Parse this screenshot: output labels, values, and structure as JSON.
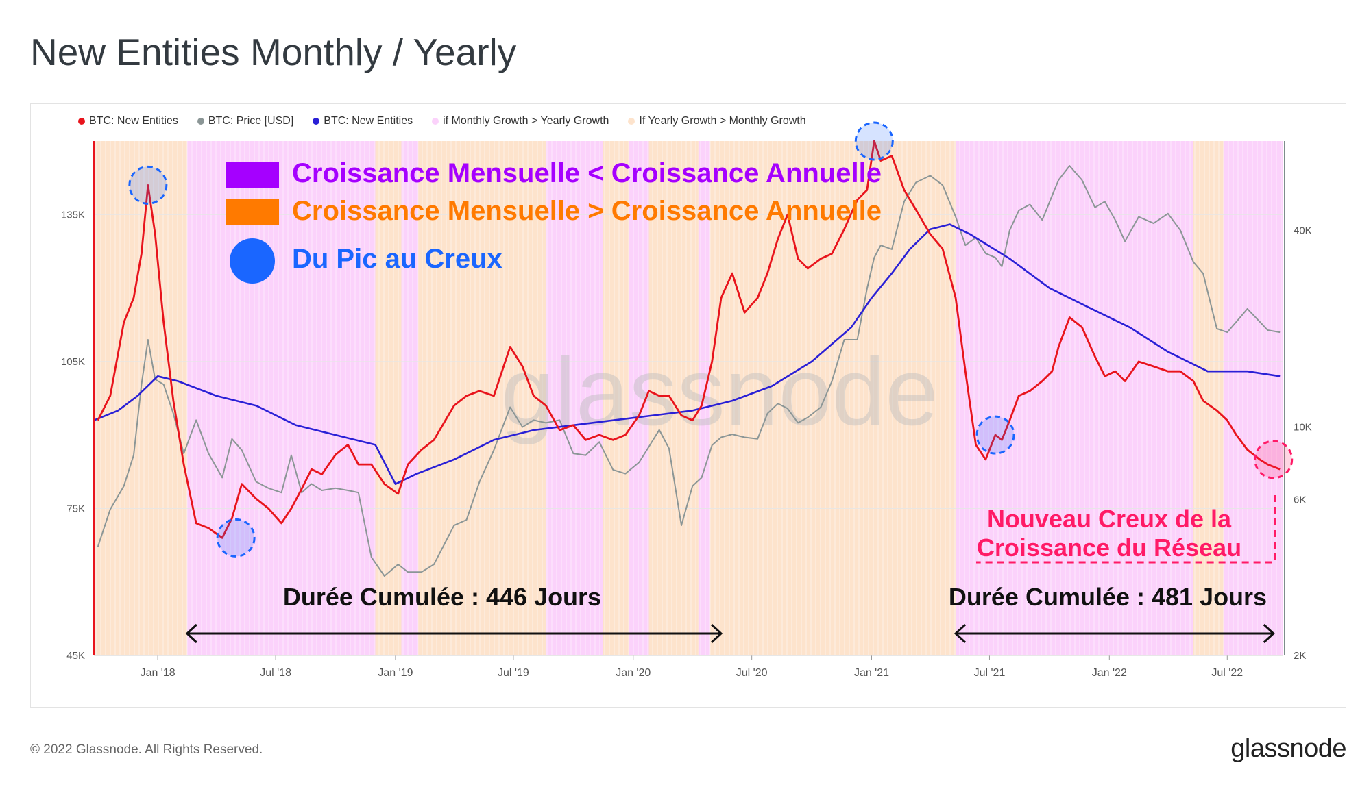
{
  "page": {
    "title": "New Entities Monthly / Yearly",
    "copyright": "© 2022 Glassnode. All Rights Reserved.",
    "logo": "glassnode",
    "watermark": "glassnode"
  },
  "legend": [
    {
      "label": "BTC: New Entities",
      "color": "#e8141c"
    },
    {
      "label": "BTC: Price [USD]",
      "color": "#8b9696"
    },
    {
      "label": "BTC: New Entities",
      "color": "#2a20d6"
    },
    {
      "label": "if Monthly Growth > Yearly Growth",
      "color": "#fbd2fb"
    },
    {
      "label": "If Yearly Growth > Monthly Growth",
      "color": "#fde3cc"
    }
  ],
  "annotations": {
    "monthly_lt_yearly": "Croissance Mensuelle < Croissance Annuelle",
    "monthly_gt_yearly": "Croissance Mensuelle > Croissance Annuelle",
    "peak_to_trough": "Du Pic au Creux",
    "new_trough_line1": "Nouveau Creux de la",
    "new_trough_line2": "Croissance du Réseau",
    "duration_1": "Durée Cumulée : 446 Jours",
    "duration_2": "Durée Cumulée : 481 Jours"
  },
  "colors": {
    "red": "#e8141c",
    "gray": "#8b9696",
    "blue": "#2a20d6",
    "pink": "#fbd2fb",
    "peach": "#fde3cc",
    "purple": "#a500ff",
    "orange": "#ff7a00",
    "marker_blue": "#1a66ff",
    "magenta": "#ff1a66"
  },
  "chart_data": {
    "type": "line",
    "title": "New Entities Monthly / Yearly",
    "x_ticks": [
      "Jan '18",
      "Jul '18",
      "Jan '19",
      "Jul '19",
      "Jan '20",
      "Jul '20",
      "Jan '21",
      "Jul '21",
      "Jan '22",
      "Jul '22"
    ],
    "x_range": [
      "2017-09-25",
      "2022-09-25"
    ],
    "y_left": {
      "ticks": [
        "45K",
        "75K",
        "105K",
        "135K"
      ],
      "range": [
        45000,
        150000
      ]
    },
    "y_right": {
      "ticks": [
        "2K",
        "6K",
        "10K",
        "40K"
      ],
      "scale": "log",
      "range": [
        2000,
        75000
      ]
    },
    "series": [
      {
        "name": "BTC: New Entities",
        "color": "#e8141c",
        "axis": "left",
        "x": [
          "2017-10-01",
          "2017-10-20",
          "2017-11-10",
          "2017-11-25",
          "2017-12-07",
          "2017-12-17",
          "2017-12-28",
          "2018-01-10",
          "2018-01-25",
          "2018-02-10",
          "2018-03-01",
          "2018-03-20",
          "2018-04-10",
          "2018-04-25",
          "2018-05-10",
          "2018-06-01",
          "2018-06-20",
          "2018-07-10",
          "2018-07-25",
          "2018-08-10",
          "2018-08-25",
          "2018-09-10",
          "2018-10-01",
          "2018-10-20",
          "2018-11-05",
          "2018-11-25",
          "2018-12-15",
          "2019-01-05",
          "2019-01-20",
          "2019-02-10",
          "2019-03-01",
          "2019-04-01",
          "2019-04-20",
          "2019-05-10",
          "2019-06-01",
          "2019-06-26",
          "2019-07-15",
          "2019-08-01",
          "2019-08-20",
          "2019-09-10",
          "2019-10-01",
          "2019-10-20",
          "2019-11-10",
          "2019-12-01",
          "2019-12-20",
          "2020-01-10",
          "2020-01-25",
          "2020-02-10",
          "2020-02-25",
          "2020-03-15",
          "2020-04-01",
          "2020-04-15",
          "2020-05-01",
          "2020-05-15",
          "2020-06-01",
          "2020-06-20",
          "2020-07-10",
          "2020-07-25",
          "2020-08-10",
          "2020-08-25",
          "2020-09-10",
          "2020-09-25",
          "2020-10-15",
          "2020-11-01",
          "2020-11-20",
          "2020-12-10",
          "2020-12-25",
          "2021-01-05",
          "2021-01-15",
          "2021-02-01",
          "2021-02-20",
          "2021-03-10",
          "2021-04-01",
          "2021-04-20",
          "2021-05-10",
          "2021-05-25",
          "2021-06-10",
          "2021-06-25",
          "2021-07-10",
          "2021-07-20",
          "2021-08-01",
          "2021-08-15",
          "2021-09-01",
          "2021-09-20",
          "2021-10-05",
          "2021-10-15",
          "2021-11-01",
          "2021-11-20",
          "2021-12-10",
          "2021-12-25",
          "2022-01-10",
          "2022-01-25",
          "2022-02-15",
          "2022-03-10",
          "2022-04-01",
          "2022-04-20",
          "2022-05-10",
          "2022-05-25",
          "2022-06-15",
          "2022-07-01",
          "2022-07-15",
          "2022-08-01",
          "2022-08-20",
          "2022-09-01",
          "2022-09-20"
        ],
        "y": [
          93000,
          98000,
          113000,
          118000,
          127000,
          141000,
          131000,
          113000,
          97000,
          84000,
          72000,
          71000,
          69000,
          73000,
          80000,
          77000,
          75000,
          72000,
          75000,
          79000,
          83000,
          82000,
          86000,
          88000,
          84000,
          84000,
          80000,
          78000,
          84000,
          87000,
          89000,
          96000,
          98000,
          99000,
          98000,
          108000,
          104000,
          98000,
          96000,
          91000,
          92000,
          89000,
          90000,
          89000,
          90000,
          94000,
          99000,
          98000,
          98000,
          94000,
          93000,
          96000,
          105000,
          118000,
          123000,
          115000,
          118000,
          123000,
          130000,
          135000,
          126000,
          124000,
          126000,
          127000,
          132000,
          138000,
          140000,
          150000,
          146000,
          147000,
          140000,
          136000,
          131000,
          128000,
          118000,
          103000,
          88000,
          85000,
          90000,
          89000,
          93000,
          98000,
          99000,
          101000,
          103000,
          108000,
          114000,
          112000,
          106000,
          102000,
          103000,
          101000,
          105000,
          104000,
          103000,
          103000,
          101000,
          97000,
          95000,
          93000,
          90000,
          87000,
          85000,
          84000,
          83000
        ]
      },
      {
        "name": "BTC: Price [USD]",
        "color": "#8b9696",
        "axis": "right",
        "x": [
          "2017-10-01",
          "2017-10-20",
          "2017-11-10",
          "2017-11-25",
          "2017-12-07",
          "2017-12-17",
          "2017-12-28",
          "2018-01-10",
          "2018-01-25",
          "2018-02-10",
          "2018-03-01",
          "2018-03-20",
          "2018-04-10",
          "2018-04-25",
          "2018-05-10",
          "2018-06-01",
          "2018-06-20",
          "2018-07-10",
          "2018-07-25",
          "2018-08-10",
          "2018-08-25",
          "2018-09-10",
          "2018-10-01",
          "2018-10-20",
          "2018-11-05",
          "2018-11-25",
          "2018-12-15",
          "2019-01-05",
          "2019-01-20",
          "2019-02-10",
          "2019-03-01",
          "2019-04-01",
          "2019-04-20",
          "2019-05-10",
          "2019-06-01",
          "2019-06-26",
          "2019-07-15",
          "2019-08-01",
          "2019-08-20",
          "2019-09-10",
          "2019-10-01",
          "2019-10-20",
          "2019-11-10",
          "2019-12-01",
          "2019-12-20",
          "2020-01-10",
          "2020-01-25",
          "2020-02-10",
          "2020-02-25",
          "2020-03-15",
          "2020-04-01",
          "2020-04-15",
          "2020-05-01",
          "2020-05-15",
          "2020-06-01",
          "2020-06-20",
          "2020-07-10",
          "2020-07-25",
          "2020-08-10",
          "2020-08-25",
          "2020-09-10",
          "2020-09-25",
          "2020-10-15",
          "2020-11-01",
          "2020-11-20",
          "2020-12-10",
          "2020-12-25",
          "2021-01-05",
          "2021-01-15",
          "2021-02-01",
          "2021-02-20",
          "2021-03-10",
          "2021-04-01",
          "2021-04-20",
          "2021-05-10",
          "2021-05-25",
          "2021-06-10",
          "2021-06-25",
          "2021-07-10",
          "2021-07-20",
          "2021-08-01",
          "2021-08-15",
          "2021-09-01",
          "2021-09-20",
          "2021-10-05",
          "2021-10-15",
          "2021-11-01",
          "2021-11-20",
          "2021-12-10",
          "2021-12-25",
          "2022-01-10",
          "2022-01-25",
          "2022-02-15",
          "2022-03-10",
          "2022-04-01",
          "2022-04-20",
          "2022-05-10",
          "2022-05-25",
          "2022-06-15",
          "2022-07-01",
          "2022-07-15",
          "2022-08-01",
          "2022-08-20",
          "2022-09-01",
          "2022-09-20"
        ],
        "y": [
          4300,
          5600,
          6600,
          8200,
          13500,
          18500,
          14000,
          13500,
          11000,
          8300,
          10500,
          8300,
          7000,
          9200,
          8500,
          6800,
          6500,
          6300,
          8200,
          6300,
          6700,
          6400,
          6500,
          6400,
          6300,
          4000,
          3500,
          3800,
          3600,
          3600,
          3800,
          5000,
          5200,
          6800,
          8500,
          11500,
          10000,
          10500,
          10300,
          10500,
          8300,
          8200,
          9000,
          7400,
          7200,
          7800,
          8700,
          9800,
          8600,
          5000,
          6600,
          7000,
          8800,
          9300,
          9500,
          9300,
          9200,
          11000,
          11800,
          11400,
          10300,
          10700,
          11500,
          13800,
          18500,
          18500,
          26500,
          33000,
          36000,
          35000,
          49000,
          56000,
          58800,
          55000,
          44000,
          36000,
          38000,
          34000,
          33000,
          31000,
          40000,
          46000,
          48000,
          43000,
          51000,
          57000,
          63000,
          57000,
          47000,
          49000,
          43000,
          37000,
          44000,
          42000,
          45000,
          40000,
          32000,
          29500,
          20000,
          19500,
          21000,
          23000,
          21000,
          19800,
          19500
        ]
      },
      {
        "name": "BTC: New Entities",
        "color": "#2a20d6",
        "axis": "left",
        "x": [
          "2017-09-25",
          "2017-11-01",
          "2017-12-01",
          "2018-01-01",
          "2018-02-01",
          "2018-04-01",
          "2018-06-01",
          "2018-08-01",
          "2018-10-01",
          "2018-12-01",
          "2019-01-01",
          "2019-02-01",
          "2019-04-01",
          "2019-06-01",
          "2019-08-01",
          "2019-10-01",
          "2019-12-01",
          "2020-02-01",
          "2020-04-01",
          "2020-06-01",
          "2020-08-01",
          "2020-10-01",
          "2020-12-01",
          "2021-01-01",
          "2021-02-01",
          "2021-03-01",
          "2021-04-01",
          "2021-05-01",
          "2021-06-01",
          "2021-08-01",
          "2021-10-01",
          "2021-12-01",
          "2022-02-01",
          "2022-04-01",
          "2022-06-01",
          "2022-08-01",
          "2022-09-20"
        ],
        "y": [
          93000,
          95000,
          98000,
          102000,
          101000,
          98000,
          96000,
          92000,
          90000,
          88000,
          80000,
          82000,
          85000,
          89000,
          91000,
          92000,
          93000,
          94000,
          95000,
          97000,
          100000,
          105000,
          112000,
          118000,
          123000,
          128000,
          132000,
          133000,
          131000,
          126000,
          120000,
          116000,
          112000,
          107000,
          103000,
          103000,
          102000
        ]
      }
    ],
    "background_bands": {
      "if Monthly Growth > Yearly Growth": [
        [
          "2018-02-15",
          "2018-12-01"
        ],
        [
          "2019-01-10",
          "2019-02-05"
        ],
        [
          "2019-08-20",
          "2019-11-15"
        ],
        [
          "2019-12-25",
          "2020-01-25"
        ],
        [
          "2020-04-10",
          "2020-04-28"
        ],
        [
          "2021-05-10",
          "2022-05-10"
        ],
        [
          "2022-06-25",
          "2022-09-25"
        ]
      ],
      "If Yearly Growth > Monthly Growth": [
        [
          "2017-09-25",
          "2018-02-15"
        ],
        [
          "2018-12-01",
          "2019-01-10"
        ],
        [
          "2019-02-05",
          "2019-08-20"
        ],
        [
          "2019-11-15",
          "2019-12-25"
        ],
        [
          "2020-01-25",
          "2020-04-10"
        ],
        [
          "2020-04-28",
          "2021-05-10"
        ],
        [
          "2022-05-10",
          "2022-06-25"
        ]
      ]
    }
  }
}
